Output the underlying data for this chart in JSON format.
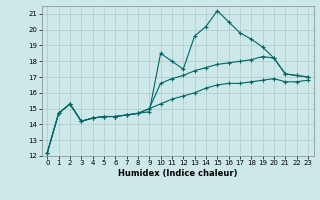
{
  "xlabel": "Humidex (Indice chaleur)",
  "bg_color": "#cce8e8",
  "line_color": "#006666",
  "xlim": [
    -0.5,
    23.5
  ],
  "ylim": [
    12,
    21.5
  ],
  "yticks": [
    12,
    13,
    14,
    15,
    16,
    17,
    18,
    19,
    20,
    21
  ],
  "xticks": [
    0,
    1,
    2,
    3,
    4,
    5,
    6,
    7,
    8,
    9,
    10,
    11,
    12,
    13,
    14,
    15,
    16,
    17,
    18,
    19,
    20,
    21,
    22,
    23
  ],
  "line1_x": [
    0,
    1,
    2,
    3,
    4,
    5,
    6,
    7,
    8,
    9,
    10,
    11,
    12,
    13,
    14,
    15,
    16,
    17,
    18,
    19,
    20,
    21,
    22,
    23
  ],
  "line1_y": [
    12.2,
    14.7,
    15.3,
    14.2,
    14.4,
    14.5,
    14.5,
    14.6,
    14.7,
    14.8,
    18.5,
    18.0,
    17.5,
    19.6,
    20.2,
    21.2,
    20.5,
    19.8,
    19.4,
    18.9,
    18.2,
    17.2,
    17.1,
    17.0
  ],
  "line2_x": [
    0,
    1,
    2,
    3,
    4,
    5,
    6,
    7,
    8,
    9,
    10,
    11,
    12,
    13,
    14,
    15,
    16,
    17,
    18,
    19,
    20,
    21,
    22,
    23
  ],
  "line2_y": [
    12.2,
    14.7,
    15.3,
    14.2,
    14.4,
    14.5,
    14.5,
    14.6,
    14.7,
    15.0,
    16.6,
    16.9,
    17.1,
    17.4,
    17.6,
    17.8,
    17.9,
    18.0,
    18.1,
    18.3,
    18.2,
    17.2,
    17.1,
    17.0
  ],
  "line3_x": [
    0,
    1,
    2,
    3,
    4,
    5,
    6,
    7,
    8,
    9,
    10,
    11,
    12,
    13,
    14,
    15,
    16,
    17,
    18,
    19,
    20,
    21,
    22,
    23
  ],
  "line3_y": [
    12.2,
    14.7,
    15.3,
    14.2,
    14.4,
    14.5,
    14.5,
    14.6,
    14.7,
    15.0,
    15.3,
    15.6,
    15.8,
    16.0,
    16.3,
    16.5,
    16.6,
    16.6,
    16.7,
    16.8,
    16.9,
    16.7,
    16.7,
    16.8
  ]
}
